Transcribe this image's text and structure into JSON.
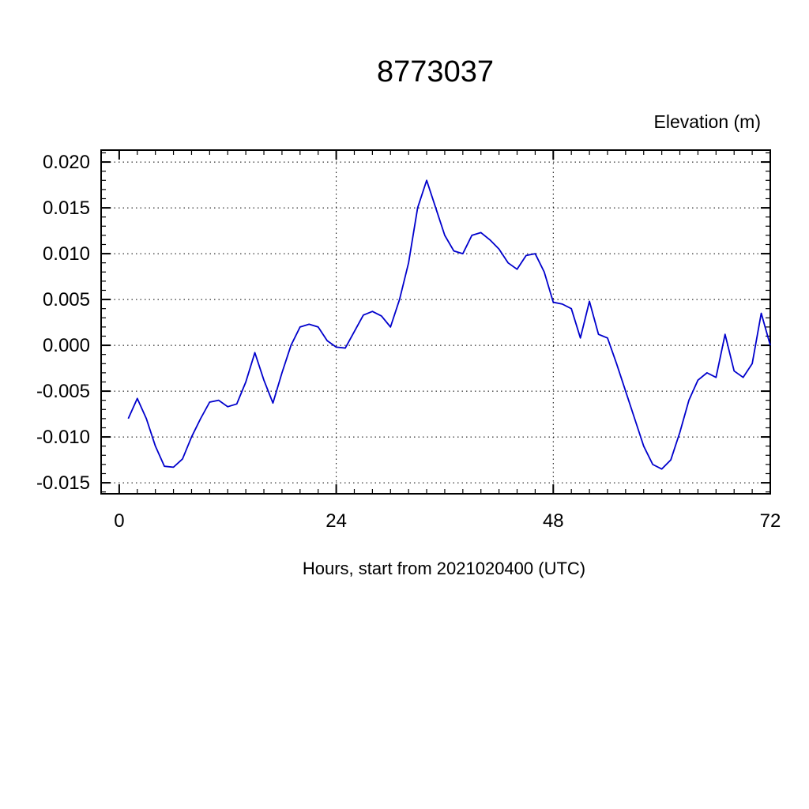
{
  "chart_data": {
    "type": "line",
    "title": "8773037",
    "xlabel": "Hours, start from 2021020400 (UTC)",
    "ylabel": "Elevation (m)",
    "xlim": [
      -2,
      72
    ],
    "ylim": [
      -0.0162,
      0.0213
    ],
    "xticks": [
      0,
      24,
      48,
      72
    ],
    "yticks": [
      -0.015,
      -0.01,
      -0.005,
      0.0,
      0.005,
      0.01,
      0.015,
      0.02
    ],
    "grid_x": [
      24,
      48
    ],
    "grid": "dashed",
    "line_color": "#0000CC",
    "series": [
      {
        "name": "elevation",
        "x": [
          1,
          2,
          3,
          4,
          5,
          6,
          7,
          8,
          9,
          10,
          11,
          12,
          13,
          14,
          15,
          16,
          17,
          18,
          19,
          20,
          21,
          22,
          23,
          24,
          25,
          26,
          27,
          28,
          29,
          30,
          31,
          32,
          33,
          34,
          35,
          36,
          37,
          38,
          39,
          40,
          41,
          42,
          43,
          44,
          45,
          46,
          47,
          48,
          49,
          50,
          51,
          52,
          53,
          54,
          55,
          56,
          57,
          58,
          59,
          60,
          61,
          62,
          63,
          64,
          65,
          66,
          67,
          68,
          69,
          70,
          71,
          72
        ],
        "y": [
          -0.008,
          -0.0058,
          -0.008,
          -0.011,
          -0.0132,
          -0.0133,
          -0.0124,
          -0.01,
          -0.008,
          -0.0062,
          -0.006,
          -0.0067,
          -0.0064,
          -0.004,
          -0.0008,
          -0.0038,
          -0.0063,
          -0.003,
          0.0,
          0.002,
          0.0023,
          0.002,
          0.0005,
          -0.0002,
          -0.0003,
          0.0015,
          0.0033,
          0.0037,
          0.0032,
          0.002,
          0.005,
          0.009,
          0.015,
          0.018,
          0.015,
          0.012,
          0.0103,
          0.01,
          0.012,
          0.0123,
          0.0115,
          0.0105,
          0.009,
          0.0083,
          0.0098,
          0.01,
          0.008,
          0.0047,
          0.0045,
          0.004,
          0.0008,
          0.0048,
          0.0012,
          0.0008,
          -0.002,
          -0.005,
          -0.008,
          -0.011,
          -0.013,
          -0.0135,
          -0.0125,
          -0.0095,
          -0.006,
          -0.0038,
          -0.003,
          -0.0035,
          0.0012,
          -0.0028,
          -0.0035,
          -0.002,
          0.0035,
          0.0
        ]
      }
    ]
  }
}
